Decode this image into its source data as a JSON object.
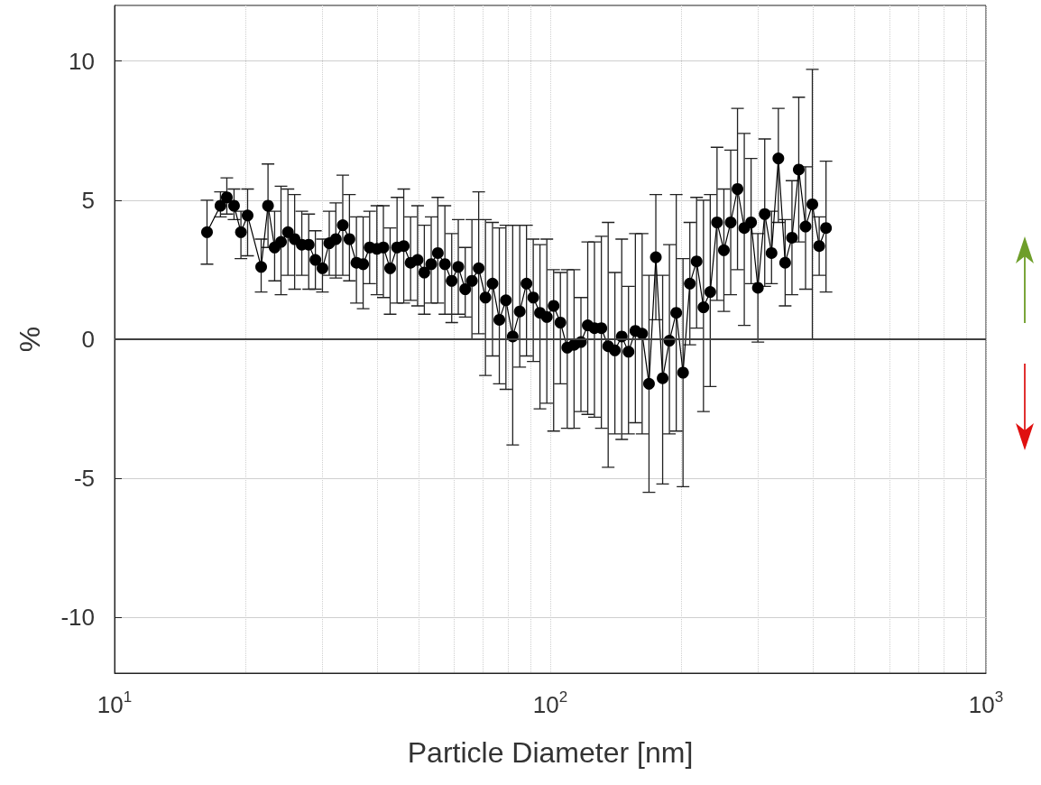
{
  "chart_data": {
    "type": "line",
    "xlabel": "Particle Diameter [nm]",
    "ylabel": "%",
    "x": [
      16.3,
      17.5,
      18.1,
      18.8,
      19.5,
      20.2,
      21.7,
      22.5,
      23.3,
      24.1,
      25.0,
      25.9,
      26.9,
      27.9,
      28.9,
      30.0,
      31.1,
      32.2,
      33.4,
      34.6,
      35.9,
      37.2,
      38.5,
      40.0,
      41.4,
      42.9,
      44.5,
      46.1,
      47.8,
      49.6,
      51.4,
      53.3,
      55.2,
      57.3,
      59.4,
      61.5,
      63.8,
      66.1,
      68.5,
      71.0,
      73.7,
      76.4,
      79.1,
      82.0,
      85.1,
      88.2,
      91.4,
      94.7,
      98.2,
      101.8,
      105.5,
      109.4,
      113.4,
      117.6,
      121.9,
      126.3,
      131.0,
      135.8,
      140.7,
      145.9,
      151.2,
      156.8,
      162.5,
      168.5,
      174.7,
      181.1,
      187.7,
      194.6,
      201.7,
      209.1,
      216.7,
      224.7,
      232.9,
      241.4,
      250.3,
      259.5,
      269.0,
      278.8,
      289.0,
      299.6,
      310.6,
      322.0,
      333.8,
      346.0,
      358.7,
      371.8,
      385.4,
      399.5,
      414.2,
      429.4
    ],
    "values": [
      3.85,
      4.8,
      5.1,
      4.8,
      3.85,
      4.45,
      2.6,
      4.8,
      3.3,
      3.5,
      3.85,
      3.6,
      3.4,
      3.4,
      2.85,
      2.55,
      3.45,
      3.6,
      4.1,
      3.6,
      2.75,
      2.7,
      3.3,
      3.25,
      3.3,
      2.55,
      3.3,
      3.35,
      2.75,
      2.85,
      2.4,
      2.7,
      3.1,
      2.7,
      2.1,
      2.6,
      1.8,
      2.1,
      2.55,
      1.5,
      2.0,
      0.7,
      1.4,
      0.1,
      1.0,
      2.0,
      1.5,
      0.95,
      0.8,
      1.2,
      0.6,
      -0.3,
      -0.2,
      -0.1,
      0.5,
      0.4,
      0.4,
      -0.25,
      -0.4,
      0.1,
      -0.45,
      0.3,
      0.2,
      -1.6,
      2.95,
      -1.4,
      -0.05,
      0.95,
      -1.2,
      2.0,
      2.8,
      1.15,
      1.7,
      4.2,
      3.2,
      4.2,
      5.4,
      4.0,
      4.2,
      1.85,
      4.5,
      3.1,
      6.5,
      2.75,
      3.65,
      6.1,
      4.05,
      4.85,
      3.35,
      4.0
    ],
    "errors": [
      [
        2.7,
        5.0
      ],
      [
        4.4,
        5.3
      ],
      [
        4.5,
        5.8
      ],
      [
        4.3,
        5.4
      ],
      [
        2.9,
        4.6
      ],
      [
        3.0,
        5.4
      ],
      [
        1.7,
        3.6
      ],
      [
        3.3,
        6.3
      ],
      [
        2.1,
        4.6
      ],
      [
        1.6,
        5.5
      ],
      [
        2.3,
        5.4
      ],
      [
        1.8,
        5.2
      ],
      [
        2.3,
        4.6
      ],
      [
        1.8,
        4.5
      ],
      [
        1.8,
        3.9
      ],
      [
        1.7,
        3.6
      ],
      [
        2.3,
        4.6
      ],
      [
        2.2,
        4.9
      ],
      [
        2.3,
        5.9
      ],
      [
        2.1,
        5.2
      ],
      [
        1.3,
        4.4
      ],
      [
        1.1,
        4.4
      ],
      [
        2.0,
        4.6
      ],
      [
        1.6,
        4.8
      ],
      [
        1.5,
        4.8
      ],
      [
        0.9,
        4.0
      ],
      [
        1.3,
        5.1
      ],
      [
        1.3,
        5.4
      ],
      [
        1.4,
        4.4
      ],
      [
        1.2,
        4.8
      ],
      [
        0.9,
        4.1
      ],
      [
        1.3,
        4.4
      ],
      [
        1.3,
        5.1
      ],
      [
        0.9,
        4.8
      ],
      [
        0.6,
        3.8
      ],
      [
        0.9,
        4.3
      ],
      [
        0.8,
        3.3
      ],
      [
        0.0,
        4.3
      ],
      [
        0.2,
        5.3
      ],
      [
        -1.3,
        4.3
      ],
      [
        -0.6,
        4.2
      ],
      [
        -1.6,
        4.0
      ],
      [
        -1.8,
        4.1
      ],
      [
        -3.8,
        4.1
      ],
      [
        -1.0,
        4.1
      ],
      [
        -0.6,
        4.1
      ],
      [
        -0.8,
        3.6
      ],
      [
        -2.5,
        3.4
      ],
      [
        -2.3,
        3.6
      ],
      [
        -3.3,
        2.5
      ],
      [
        -1.6,
        2.4
      ],
      [
        -3.2,
        2.5
      ],
      [
        -3.2,
        2.5
      ],
      [
        -2.6,
        1.5
      ],
      [
        -2.7,
        3.5
      ],
      [
        -2.8,
        3.5
      ],
      [
        -3.2,
        3.7
      ],
      [
        -4.6,
        4.2
      ],
      [
        -3.4,
        2.4
      ],
      [
        -3.6,
        3.6
      ],
      [
        -3.4,
        1.9
      ],
      [
        -3.0,
        3.8
      ],
      [
        -3.4,
        3.8
      ],
      [
        -5.5,
        2.3
      ],
      [
        0.7,
        5.2
      ],
      [
        -5.2,
        2.3
      ],
      [
        -3.4,
        3.4
      ],
      [
        -3.3,
        5.2
      ],
      [
        -5.3,
        2.9
      ],
      [
        -0.2,
        4.2
      ],
      [
        0.4,
        5.1
      ],
      [
        -2.6,
        5.0
      ],
      [
        -1.7,
        5.2
      ],
      [
        1.4,
        6.9
      ],
      [
        1.0,
        5.4
      ],
      [
        1.6,
        6.8
      ],
      [
        2.5,
        8.3
      ],
      [
        0.5,
        7.4
      ],
      [
        2.0,
        6.5
      ],
      [
        -0.1,
        3.8
      ],
      [
        1.9,
        7.2
      ],
      [
        2.0,
        4.6
      ],
      [
        4.2,
        8.3
      ],
      [
        1.2,
        4.3
      ],
      [
        1.6,
        5.7
      ],
      [
        3.5,
        8.7
      ],
      [
        1.8,
        6.2
      ],
      [
        0.0,
        9.7
      ],
      [
        2.3,
        4.4
      ],
      [
        1.7,
        6.4
      ]
    ],
    "color": "#000000",
    "marker": "circle",
    "line_style": "solid",
    "log": "x",
    "xlim": [
      10,
      1000
    ],
    "xticks": [
      {
        "value": 10,
        "label": "10$^{1}$"
      },
      {
        "value": 100,
        "label": "10$^{2}$"
      },
      {
        "value": 1000,
        "label": "10$^{3}$"
      }
    ],
    "ylim": [
      -12,
      12
    ],
    "yticks": [
      -10,
      -5,
      0,
      5,
      10
    ],
    "grid": true,
    "ref_lines": [
      {
        "axis": "y",
        "value": 0,
        "color": "#404040"
      }
    ]
  }
}
